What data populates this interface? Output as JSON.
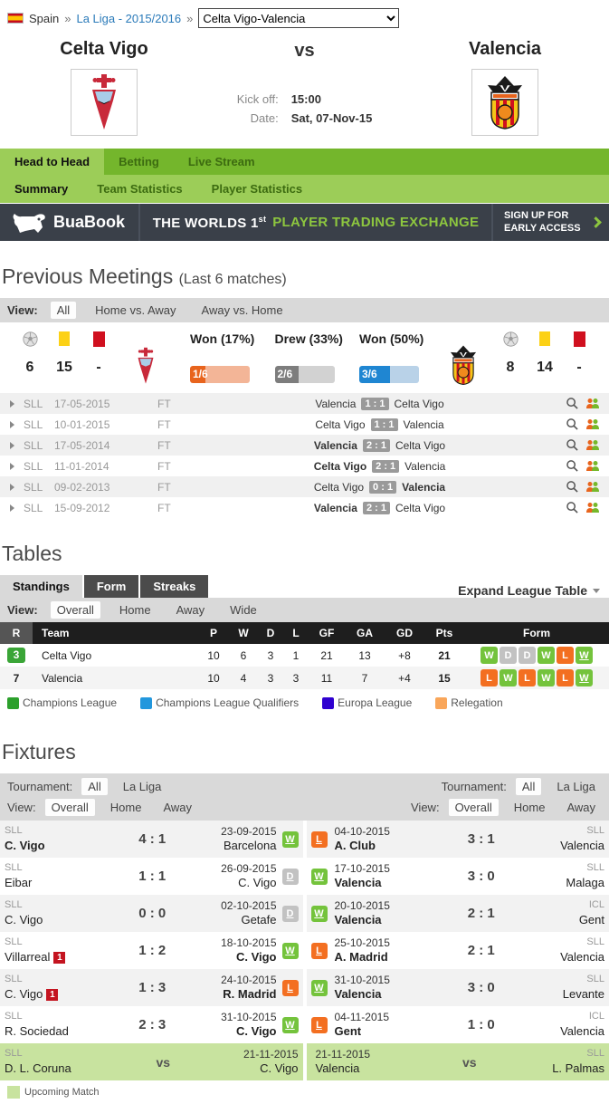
{
  "breadcrumb": {
    "country": "Spain",
    "sep1": "»",
    "league": "La Liga - 2015/2016",
    "sep2": "»",
    "match_select": "Celta Vigo-Valencia"
  },
  "match_header": {
    "home_team": "Celta Vigo",
    "vs": "vs",
    "away_team": "Valencia",
    "kickoff_label": "Kick off:",
    "kickoff_value": "15:00",
    "date_label": "Date:",
    "date_value": "Sat, 07-Nov-15"
  },
  "nav": {
    "primary": [
      {
        "label": "Head to Head"
      },
      {
        "label": "Betting"
      },
      {
        "label": "Live Stream"
      }
    ],
    "secondary": [
      {
        "label": "Summary"
      },
      {
        "label": "Team Statistics"
      },
      {
        "label": "Player Statistics"
      }
    ]
  },
  "banner": {
    "brand": "BuaBook",
    "headline_1": "THE WORLDS 1",
    "headline_sup": "st",
    "headline_2": "PLAYER TRADING EXCHANGE",
    "cta_line1": "SIGN UP FOR",
    "cta_line2": "EARLY ACCESS"
  },
  "previous_meetings": {
    "title": "Previous Meetings",
    "subtitle": "(Last 6 matches)",
    "view_label": "View:",
    "views": [
      {
        "label": "All"
      },
      {
        "label": "Home vs. Away"
      },
      {
        "label": "Away vs. Home"
      }
    ],
    "home_stats": {
      "goals": "6",
      "yellow": "15",
      "red": "-"
    },
    "away_stats": {
      "goals": "8",
      "yellow": "14",
      "red": "-"
    },
    "bars": [
      {
        "label": "Won (17%)",
        "value": "1/6",
        "pct": "26",
        "fill": "#e8641d",
        "bg": "#f3b597"
      },
      {
        "label": "Drew (33%)",
        "value": "2/6",
        "pct": "40",
        "fill": "#7d7d7d",
        "bg": "#d2d2d2"
      },
      {
        "label": "Won (50%)",
        "value": "3/6",
        "pct": "52",
        "fill": "#1f86d2",
        "bg": "#b9d2e8"
      }
    ],
    "matches": [
      {
        "league": "SLL",
        "date": "17-05-2015",
        "status": "FT",
        "home": "Valencia",
        "score": "1 : 1",
        "away": "Celta Vigo"
      },
      {
        "league": "SLL",
        "date": "10-01-2015",
        "status": "FT",
        "home": "Celta Vigo",
        "score": "1 : 1",
        "away": "Valencia"
      },
      {
        "league": "SLL",
        "date": "17-05-2014",
        "status": "FT",
        "home": "Valencia",
        "score": "2 : 1",
        "away": "Celta Vigo"
      },
      {
        "league": "SLL",
        "date": "11-01-2014",
        "status": "FT",
        "home": "Celta Vigo",
        "score": "2 : 1",
        "away": "Valencia"
      },
      {
        "league": "SLL",
        "date": "09-02-2013",
        "status": "FT",
        "home": "Celta Vigo",
        "score": "0 : 1",
        "away": "Valencia"
      },
      {
        "league": "SLL",
        "date": "15-09-2012",
        "status": "FT",
        "home": "Valencia",
        "score": "2 : 1",
        "away": "Celta Vigo"
      }
    ]
  },
  "tables": {
    "title": "Tables",
    "tabs": [
      {
        "label": "Standings"
      },
      {
        "label": "Form"
      },
      {
        "label": "Streaks"
      }
    ],
    "expand_label": "Expand League Table",
    "view_label": "View:",
    "views": [
      {
        "label": "Overall"
      },
      {
        "label": "Home"
      },
      {
        "label": "Away"
      },
      {
        "label": "Wide"
      }
    ],
    "headers": {
      "r": "R",
      "team": "Team",
      "p": "P",
      "w": "W",
      "d": "D",
      "l": "L",
      "gf": "GF",
      "ga": "GA",
      "gd": "GD",
      "pts": "Pts",
      "form": "Form"
    },
    "rows": [
      {
        "rank": "3",
        "team": "Celta Vigo",
        "p": "10",
        "w": "6",
        "d": "3",
        "l": "1",
        "gf": "21",
        "ga": "13",
        "gd": "+8",
        "pts": "21",
        "form": [
          "W",
          "D",
          "D",
          "W",
          "L",
          "W"
        ]
      },
      {
        "rank": "7",
        "team": "Valencia",
        "p": "10",
        "w": "4",
        "d": "3",
        "l": "3",
        "gf": "11",
        "ga": "7",
        "gd": "+4",
        "pts": "15",
        "form": [
          "L",
          "W",
          "L",
          "W",
          "L",
          "W"
        ]
      }
    ],
    "legend": [
      {
        "label": "Champions League",
        "color": "#2ca02c"
      },
      {
        "label": "Champions League Qualifiers",
        "color": "#2297dd"
      },
      {
        "label": "Europa League",
        "color": "#2f00d0"
      },
      {
        "label": "Relegation",
        "color": "#f9a65a"
      }
    ]
  },
  "fixtures": {
    "title": "Fixtures",
    "tournament_label": "Tournament:",
    "tournaments": [
      {
        "label": "All"
      },
      {
        "label": "La Liga"
      }
    ],
    "view_label": "View:",
    "views": [
      {
        "label": "Overall"
      },
      {
        "label": "Home"
      },
      {
        "label": "Away"
      }
    ],
    "left": [
      {
        "league": "SLL",
        "team": "C. Vigo",
        "cards": "",
        "score": "4 : 1",
        "date": "23-09-2015",
        "opp": "Barcelona",
        "result": "W"
      },
      {
        "league": "SLL",
        "team": "Eibar",
        "cards": "",
        "score": "1 : 1",
        "date": "26-09-2015",
        "opp": "C. Vigo",
        "result": "D"
      },
      {
        "league": "SLL",
        "team": "C. Vigo",
        "cards": "",
        "score": "0 : 0",
        "date": "02-10-2015",
        "opp": "Getafe",
        "result": "D"
      },
      {
        "league": "SLL",
        "team": "Villarreal",
        "cards": "1",
        "score": "1 : 2",
        "date": "18-10-2015",
        "opp": "C. Vigo",
        "result": "W"
      },
      {
        "league": "SLL",
        "team": "C. Vigo",
        "cards": "1",
        "score": "1 : 3",
        "date": "24-10-2015",
        "opp": "R. Madrid",
        "result": "L"
      },
      {
        "league": "SLL",
        "team": "R. Sociedad",
        "cards": "",
        "score": "2 : 3",
        "date": "31-10-2015",
        "opp": "C. Vigo",
        "result": "W"
      }
    ],
    "right": [
      {
        "result": "L",
        "date": "04-10-2015",
        "team": "A. Club",
        "score": "3 : 1",
        "league": "SLL",
        "opp": "Valencia"
      },
      {
        "result": "W",
        "date": "17-10-2015",
        "team": "Valencia",
        "score": "3 : 0",
        "league": "SLL",
        "opp": "Malaga"
      },
      {
        "result": "W",
        "date": "20-10-2015",
        "team": "Valencia",
        "score": "2 : 1",
        "league": "ICL",
        "opp": "Gent"
      },
      {
        "result": "L",
        "date": "25-10-2015",
        "team": "A. Madrid",
        "score": "2 : 1",
        "league": "SLL",
        "opp": "Valencia"
      },
      {
        "result": "W",
        "date": "31-10-2015",
        "team": "Valencia",
        "score": "3 : 0",
        "league": "SLL",
        "opp": "Levante"
      },
      {
        "result": "L",
        "date": "04-11-2015",
        "team": "Gent",
        "score": "1 : 0",
        "league": "ICL",
        "opp": "Valencia"
      }
    ],
    "upcoming_left": {
      "league": "SLL",
      "team": "D. L. Coruna",
      "vs": "vs",
      "date": "21-11-2015",
      "opp": "C. Vigo"
    },
    "upcoming_right": {
      "date": "21-11-2015",
      "team": "Valencia",
      "vs": "vs",
      "league": "SLL",
      "opp": "L. Palmas"
    },
    "upcoming_legend": "Upcoming Match"
  }
}
